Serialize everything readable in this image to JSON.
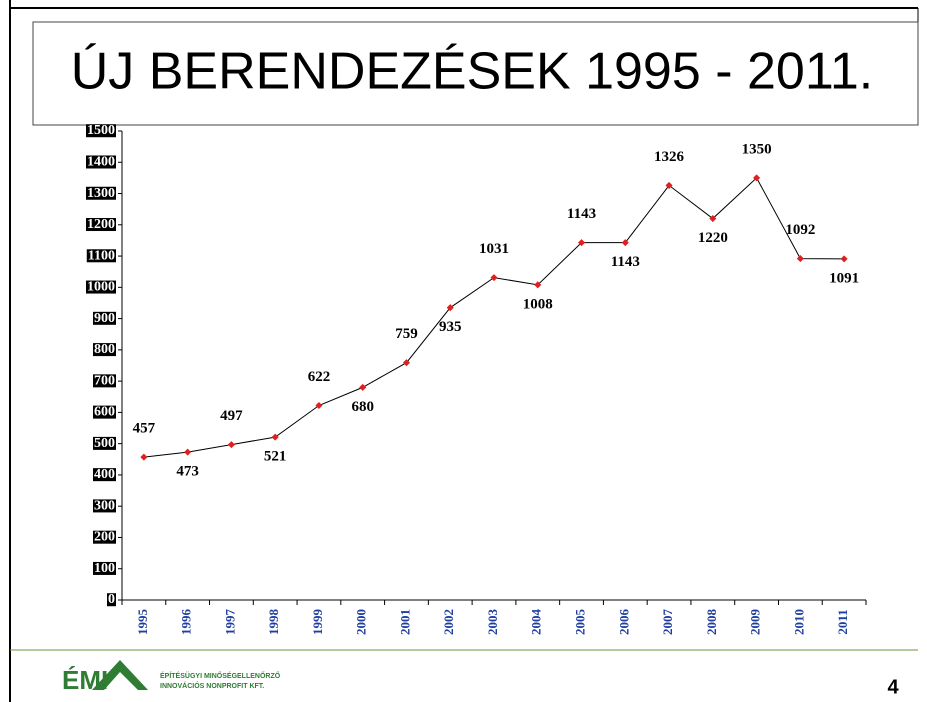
{
  "chart_data": {
    "type": "line",
    "title": "ÚJ BERENDEZÉSEK 1995 - 2011.",
    "categories": [
      "1995",
      "1996",
      "1997",
      "1998",
      "1999",
      "2000",
      "2001",
      "2002",
      "2003",
      "2004",
      "2005",
      "2006",
      "2007",
      "2008",
      "2009",
      "2010",
      "2011"
    ],
    "values": [
      457,
      473,
      497,
      521,
      622,
      680,
      759,
      935,
      1031,
      1008,
      1143,
      1143,
      1326,
      1220,
      1350,
      1092,
      1091
    ],
    "color": "#000000",
    "marker_color": "#e02020",
    "ylim": [
      0,
      1500
    ],
    "yticks": [
      0,
      100,
      200,
      300,
      400,
      500,
      600,
      700,
      800,
      900,
      1000,
      1100,
      1200,
      1300,
      1400,
      1500
    ]
  },
  "footer": {
    "logo": "ÉMI",
    "company_line1": "ÉPÍTÉSÜGYI MINŐSÉGELLENŐRZŐ",
    "company_line2": "INNOVÁCIÓS NONPROFIT KFT.",
    "page_number": "4"
  }
}
